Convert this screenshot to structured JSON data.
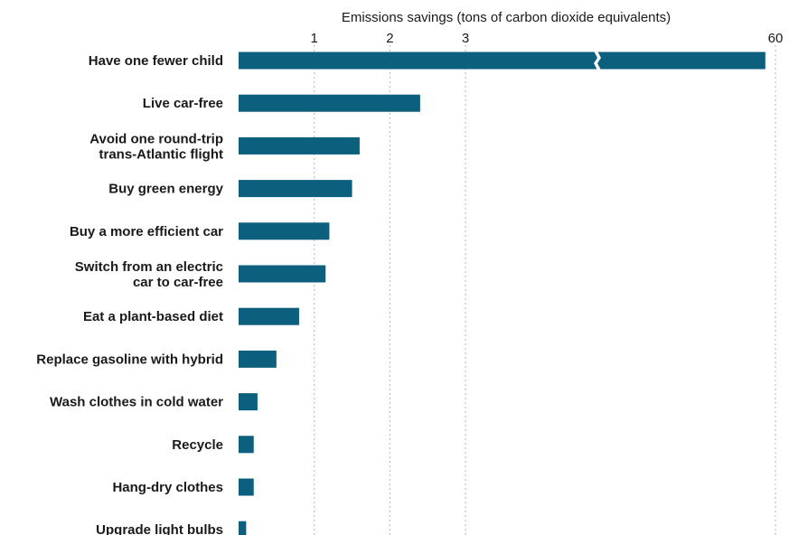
{
  "chart_data": {
    "type": "bar",
    "orientation": "horizontal",
    "title": "",
    "xlabel": "Emissions savings (tons of carbon dioxide equivalents)",
    "ylabel": "",
    "x_ticks": [
      "1",
      "2",
      "3",
      "60"
    ],
    "x_axis_break": "between 3 and 60",
    "grid": "vertical dashed lines at ticks",
    "bar_color": "#0d5f7e",
    "categories": [
      "Have one fewer child",
      "Live car-free",
      "Avoid one round-trip trans-Atlantic flight",
      "Buy green energy",
      "Buy a more efficient car",
      "Switch from an electric car to car-free",
      "Eat a plant-based diet",
      "Replace gasoline with hybrid",
      "Wash clothes in cold water",
      "Recycle",
      "Hang-dry clothes",
      "Upgrade light bulbs"
    ],
    "category_lines": [
      [
        "Have one fewer child"
      ],
      [
        "Live car-free"
      ],
      [
        "Avoid one round-trip",
        "trans-Atlantic flight"
      ],
      [
        "Buy green energy"
      ],
      [
        "Buy a more efficient car"
      ],
      [
        "Switch from an electric",
        "car to car-free"
      ],
      [
        "Eat a plant-based diet"
      ],
      [
        "Replace gasoline with hybrid"
      ],
      [
        "Wash clothes in cold water"
      ],
      [
        "Recycle"
      ],
      [
        "Hang-dry clothes"
      ],
      [
        "Upgrade light bulbs"
      ]
    ],
    "values": [
      58.6,
      2.4,
      1.6,
      1.5,
      1.2,
      1.15,
      0.8,
      0.5,
      0.25,
      0.2,
      0.2,
      0.1
    ]
  }
}
